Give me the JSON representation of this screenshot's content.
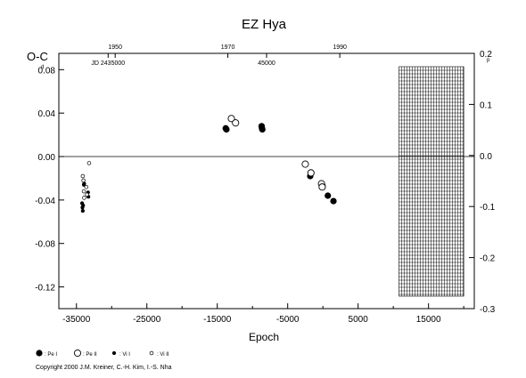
{
  "chart_data": {
    "type": "scatter",
    "title": "EZ  Hya",
    "xlabel": "Epoch",
    "ylabel_left": "O-C",
    "ylabel_left_unit": "d",
    "ylabel_right_unit": "p",
    "xlim": [
      -37500,
      21500
    ],
    "ylim_left": [
      -0.14,
      0.095
    ],
    "ylim_right": [
      -0.3,
      0.2
    ],
    "x_ticks": [
      -35000,
      -25000,
      -15000,
      -5000,
      5000,
      15000
    ],
    "x_tick_labels": [
      "-35000",
      "-25000",
      "-15000",
      "-5000",
      "5000",
      "15000"
    ],
    "y_ticks_left": [
      0.08,
      0.04,
      0.0,
      -0.04,
      -0.08,
      -0.12
    ],
    "y_tick_labels_left": [
      "0.08",
      "0.04",
      "0.00",
      "-0.04",
      "-0.08",
      "-0.12"
    ],
    "y_ticks_right": [
      0.2,
      0.1,
      0.0,
      -0.1,
      -0.2,
      -0.3
    ],
    "y_tick_labels_right": [
      "0.2",
      "0.1",
      "0.0",
      "-0.1",
      "-0.2",
      "-0.3"
    ],
    "top_axis": {
      "years": [
        "1950",
        "1970",
        "1990"
      ],
      "year_epochs": [
        -29500,
        -13500,
        2400
      ],
      "jd_labels": [
        "JD 2435000",
        "45000"
      ],
      "jd_epochs": [
        -30500,
        -8000
      ]
    },
    "grid": false,
    "zero_line": true,
    "hatched_region": {
      "x_start": 10800,
      "x_end": 20000
    },
    "legend_position": "bottom-left",
    "legend": [
      {
        "label": ": Pe I",
        "marker": "filled-large"
      },
      {
        "label": ": Pe II",
        "marker": "open-large"
      },
      {
        "label": ": Vi I",
        "marker": "filled-small"
      },
      {
        "label": ": Vi II",
        "marker": "open-small"
      }
    ],
    "series": [
      {
        "marker": "filled-large",
        "points": [
          [
            -13800,
            0.026
          ],
          [
            -13700,
            0.025
          ],
          [
            -8700,
            0.028
          ],
          [
            -8650,
            0.026
          ],
          [
            -8600,
            0.025
          ],
          [
            -1800,
            -0.018
          ],
          [
            -50,
            -0.027
          ],
          [
            700,
            -0.036
          ],
          [
            1500,
            -0.041
          ]
        ]
      },
      {
        "marker": "open-large",
        "points": [
          [
            -13000,
            0.035
          ],
          [
            -12400,
            0.031
          ],
          [
            -2500,
            -0.007
          ],
          [
            -1700,
            -0.015
          ],
          [
            -200,
            -0.025
          ],
          [
            -100,
            -0.028
          ]
        ]
      },
      {
        "marker": "filled-small",
        "points": [
          [
            -34200,
            -0.043
          ],
          [
            -34150,
            -0.047
          ],
          [
            -34100,
            -0.05
          ],
          [
            -34050,
            -0.045
          ],
          [
            -33950,
            -0.026
          ],
          [
            -33900,
            -0.025
          ],
          [
            -33350,
            -0.033
          ],
          [
            -33300,
            -0.037
          ]
        ]
      },
      {
        "marker": "open-small",
        "points": [
          [
            -34100,
            -0.018
          ],
          [
            -34000,
            -0.022
          ],
          [
            -33950,
            -0.032
          ],
          [
            -33900,
            -0.038
          ],
          [
            -33600,
            -0.028
          ],
          [
            -33500,
            -0.035
          ],
          [
            -33200,
            -0.006
          ]
        ]
      }
    ]
  },
  "copyright": "Copyright 2000 J.M. Kreiner, C.-H. Kim, I.-S. Nha"
}
